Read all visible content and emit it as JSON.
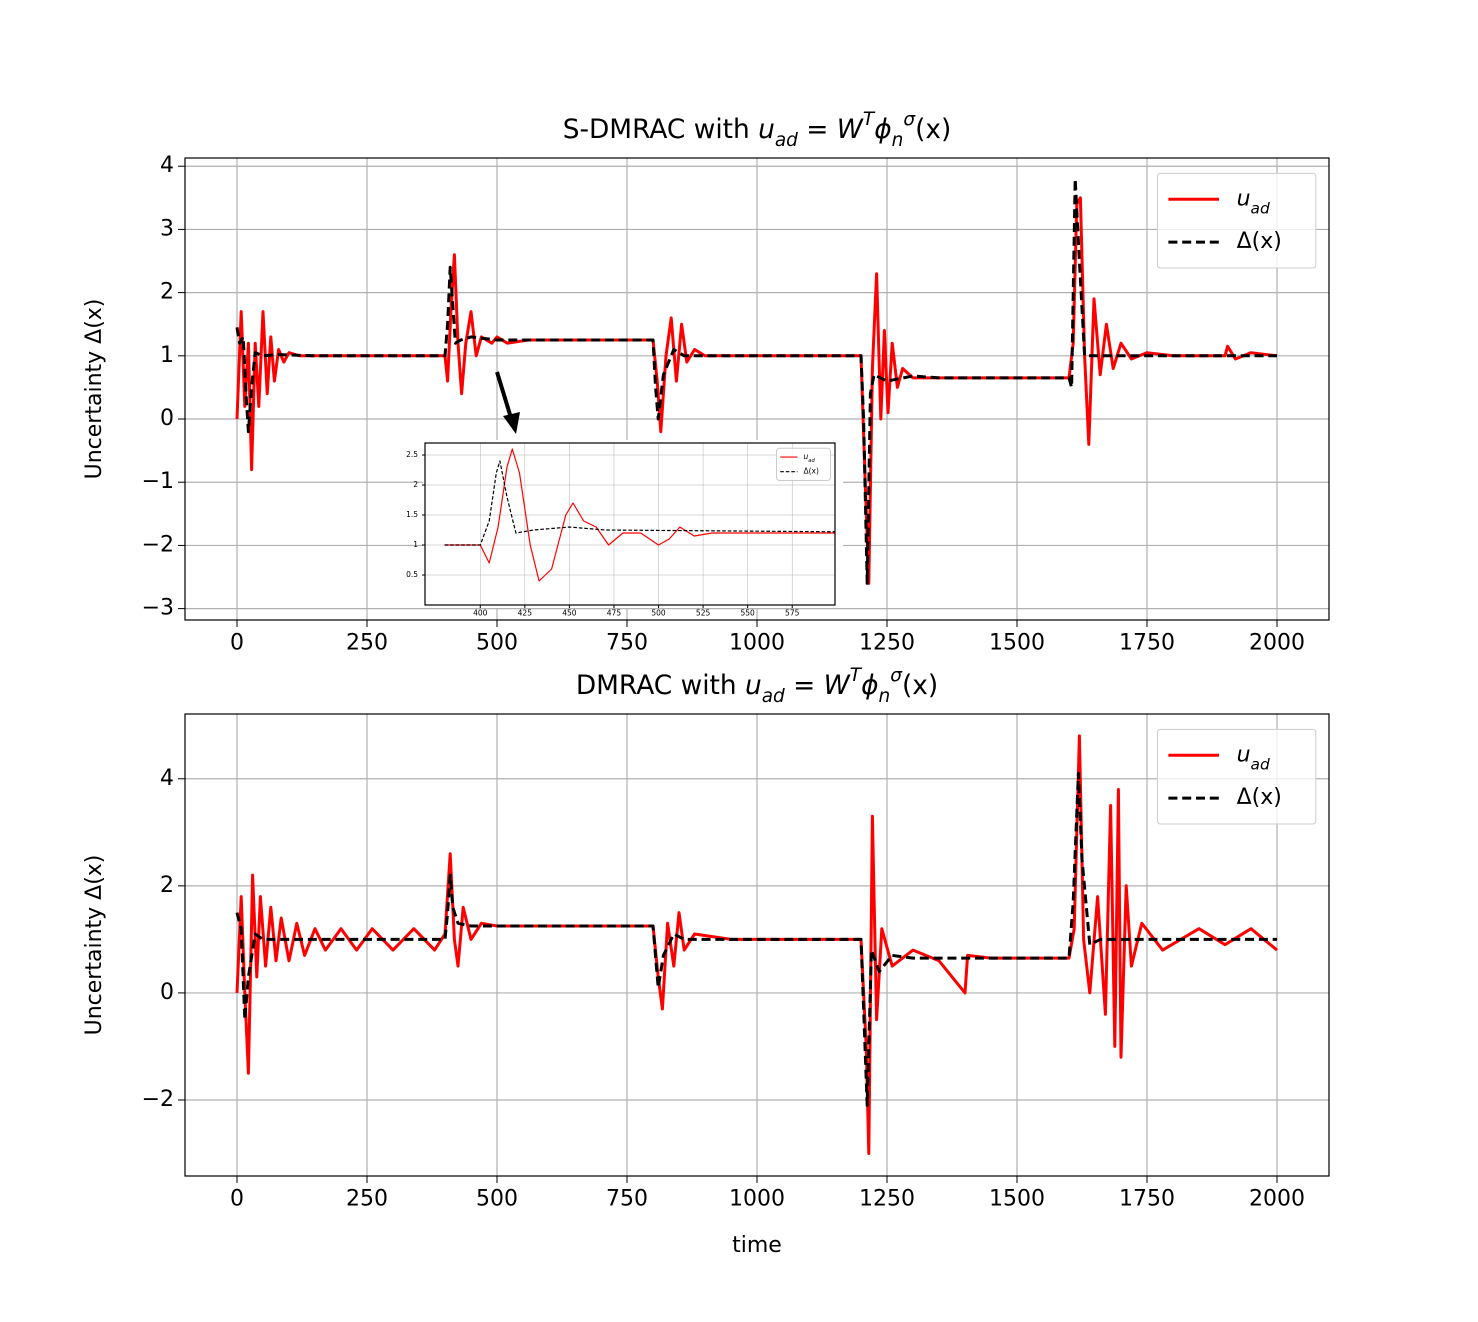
{
  "chart_data": [
    {
      "type": "line",
      "title": [
        {
          "text": "S-DMRAC with "
        },
        {
          "text": "u",
          "italic": true
        },
        {
          "text": "ad",
          "italic": true,
          "sub": true
        },
        {
          "text": " = "
        },
        {
          "text": "W",
          "italic": true
        },
        {
          "text": "T",
          "italic": true,
          "sup": true
        },
        {
          "text": "ϕ",
          "italic": true
        },
        {
          "text": "n",
          "italic": true,
          "sub": true
        },
        {
          "text": "σ",
          "italic": true,
          "sup": true
        },
        {
          "text": "(x)"
        }
      ],
      "ylabel": "Uncertainty Δ(x)",
      "xlim": [
        -100,
        2100
      ],
      "ylim": [
        -3.18,
        4.13
      ],
      "xticks": [
        0,
        250,
        500,
        750,
        1000,
        1250,
        1500,
        1750,
        2000
      ],
      "yticks": [
        {
          "value": -3,
          "label": "−3"
        },
        {
          "value": -2,
          "label": "−2"
        },
        {
          "value": -1,
          "label": "−1"
        },
        0,
        1,
        2,
        3,
        4
      ],
      "grid": true,
      "legend": "upper right",
      "series": [
        {
          "name": [
            {
              "text": "u",
              "italic": true
            },
            {
              "text": "ad",
              "italic": true,
              "sub": true
            }
          ],
          "color": "#ff0000",
          "linestyle": "solid",
          "x": [
            0,
            8,
            15,
            22,
            28,
            35,
            42,
            50,
            58,
            65,
            72,
            80,
            90,
            100,
            120,
            400,
            405,
            412,
            418,
            425,
            432,
            440,
            450,
            460,
            470,
            490,
            500,
            520,
            560,
            800,
            808,
            815,
            825,
            835,
            845,
            855,
            865,
            880,
            900,
            1200,
            1208,
            1215,
            1222,
            1230,
            1238,
            1245,
            1252,
            1260,
            1270,
            1280,
            1300,
            1400,
            1600,
            1608,
            1615,
            1622,
            1630,
            1638,
            1648,
            1660,
            1672,
            1685,
            1700,
            1720,
            1750,
            1800,
            1900,
            1905,
            1920,
            1950,
            2000
          ],
          "values": [
            0,
            1.7,
            0.2,
            1.2,
            -0.8,
            1.2,
            0.2,
            1.7,
            0.4,
            1.3,
            0.6,
            1.1,
            0.9,
            1.05,
            1.0,
            1.0,
            0.6,
            1.8,
            2.6,
            1.2,
            0.4,
            1.2,
            1.7,
            1.0,
            1.3,
            1.2,
            1.3,
            1.2,
            1.25,
            1.25,
            0.6,
            -0.2,
            1.0,
            1.6,
            0.6,
            1.5,
            0.9,
            1.1,
            1.0,
            1.0,
            -1.0,
            -2.6,
            0.8,
            2.3,
            0.0,
            1.4,
            0.1,
            1.2,
            0.5,
            0.8,
            0.65,
            0.65,
            0.65,
            1.2,
            3.4,
            3.5,
            1.0,
            -0.4,
            1.9,
            0.7,
            1.5,
            0.8,
            1.2,
            0.95,
            1.05,
            1.0,
            1.0,
            1.15,
            0.95,
            1.05,
            1.0
          ]
        },
        {
          "name": [
            {
              "text": "Δ(x)"
            }
          ],
          "color": "#000000",
          "linestyle": "dashed",
          "x": [
            0,
            5,
            12,
            18,
            22,
            28,
            35,
            50,
            80,
            150,
            400,
            405,
            410,
            415,
            420,
            430,
            450,
            500,
            800,
            805,
            810,
            820,
            840,
            860,
            1200,
            1205,
            1212,
            1218,
            1225,
            1250,
            1300,
            1350,
            1600,
            1605,
            1612,
            1620,
            1630,
            1650,
            1700,
            2000
          ],
          "values": [
            1.45,
            1.2,
            1.3,
            0.3,
            -0.2,
            0.5,
            1.05,
            1.0,
            1.02,
            1.0,
            1.0,
            1.5,
            2.4,
            1.8,
            1.2,
            1.25,
            1.3,
            1.25,
            1.25,
            0.5,
            0.0,
            0.7,
            1.1,
            1.0,
            1.0,
            0,
            -2.6,
            0.4,
            0.7,
            0.6,
            0.68,
            0.65,
            0.65,
            0.5,
            3.8,
            2.5,
            1.0,
            1.0,
            1.0,
            1.0
          ]
        }
      ]
    },
    {
      "type": "line",
      "xlim": [
        369,
        599
      ],
      "ylim": [
        0.0,
        2.7
      ],
      "xticks": [
        400,
        425,
        450,
        475,
        500,
        525,
        550,
        575
      ],
      "yticks": [
        0.5,
        1.0,
        1.5,
        2.0,
        2.5
      ],
      "grid": true,
      "legend": "upper right",
      "series": [
        {
          "name": [
            {
              "text": "u",
              "italic": true
            },
            {
              "text": "ad",
              "italic": true,
              "sub": true
            }
          ],
          "color": "#ff0000",
          "linestyle": "solid",
          "x": [
            380,
            400,
            405,
            410,
            415,
            418,
            422,
            428,
            433,
            440,
            448,
            452,
            458,
            465,
            472,
            480,
            490,
            500,
            506,
            512,
            520,
            530,
            600
          ],
          "values": [
            1.0,
            1.0,
            0.7,
            1.3,
            2.3,
            2.6,
            2.2,
            1.0,
            0.4,
            0.6,
            1.5,
            1.7,
            1.4,
            1.3,
            1.0,
            1.2,
            1.2,
            1.0,
            1.1,
            1.3,
            1.15,
            1.2,
            1.2
          ]
        },
        {
          "name": [
            {
              "text": "Δ(x)"
            }
          ],
          "color": "#000000",
          "linestyle": "dashed",
          "x": [
            380,
            400,
            405,
            409,
            411,
            415,
            420,
            430,
            450,
            470,
            600
          ],
          "values": [
            1.0,
            1.0,
            1.4,
            2.2,
            2.4,
            1.8,
            1.2,
            1.25,
            1.3,
            1.25,
            1.22
          ]
        }
      ]
    },
    {
      "type": "line",
      "title": [
        {
          "text": "DMRAC with "
        },
        {
          "text": "u",
          "italic": true
        },
        {
          "text": "ad",
          "italic": true,
          "sub": true
        },
        {
          "text": " = "
        },
        {
          "text": "W",
          "italic": true
        },
        {
          "text": "T",
          "italic": true,
          "sup": true
        },
        {
          "text": "ϕ",
          "italic": true
        },
        {
          "text": "n",
          "italic": true,
          "sub": true
        },
        {
          "text": "σ",
          "italic": true,
          "sup": true
        },
        {
          "text": "(x)"
        }
      ],
      "ylabel": "Uncertainty Δ(x)",
      "xlabel": "time",
      "xlim": [
        -100,
        2100
      ],
      "ylim": [
        -3.42,
        5.21
      ],
      "xticks": [
        0,
        250,
        500,
        750,
        1000,
        1250,
        1500,
        1750,
        2000
      ],
      "yticks": [
        {
          "value": -2,
          "label": "−2"
        },
        0,
        2,
        4
      ],
      "grid": true,
      "legend": "upper right",
      "series": [
        {
          "name": [
            {
              "text": "u",
              "italic": true
            },
            {
              "text": "ad",
              "italic": true,
              "sub": true
            }
          ],
          "color": "#ff0000",
          "linestyle": "solid",
          "x": [
            0,
            8,
            15,
            22,
            30,
            38,
            45,
            55,
            65,
            75,
            85,
            100,
            115,
            130,
            150,
            170,
            200,
            230,
            260,
            300,
            340,
            380,
            400,
            410,
            418,
            425,
            435,
            450,
            470,
            500,
            800,
            810,
            818,
            828,
            840,
            850,
            860,
            880,
            950,
            1200,
            1210,
            1215,
            1222,
            1230,
            1240,
            1260,
            1300,
            1350,
            1400,
            1405,
            1450,
            1600,
            1610,
            1620,
            1628,
            1640,
            1655,
            1670,
            1680,
            1688,
            1695,
            1700,
            1710,
            1720,
            1740,
            1780,
            1850,
            1900,
            1950,
            2000
          ],
          "values": [
            0,
            1.8,
            0.0,
            -1.5,
            2.2,
            0.3,
            1.8,
            0.5,
            1.6,
            0.6,
            1.4,
            0.6,
            1.3,
            0.7,
            1.2,
            0.8,
            1.2,
            0.8,
            1.2,
            0.8,
            1.2,
            0.8,
            1.1,
            2.6,
            1.0,
            0.5,
            1.6,
            1.0,
            1.3,
            1.25,
            1.25,
            0.3,
            -0.3,
            1.3,
            0.5,
            1.5,
            0.8,
            1.1,
            1.0,
            1.0,
            -1.0,
            -3.0,
            3.3,
            -0.5,
            1.2,
            0.5,
            0.8,
            0.6,
            0.0,
            0.7,
            0.65,
            0.65,
            1.2,
            4.8,
            1.0,
            0.0,
            1.8,
            -0.4,
            3.5,
            -1.0,
            3.8,
            -1.2,
            2.0,
            0.5,
            1.3,
            0.8,
            1.2,
            0.9,
            1.2,
            0.8
          ]
        },
        {
          "name": [
            {
              "text": "Δ(x)"
            }
          ],
          "color": "#000000",
          "linestyle": "dashed",
          "x": [
            0,
            8,
            15,
            22,
            35,
            50,
            400,
            405,
            410,
            415,
            425,
            450,
            800,
            810,
            820,
            840,
            860,
            1200,
            1212,
            1220,
            1235,
            1260,
            1300,
            1600,
            1608,
            1618,
            1625,
            1640,
            1660,
            2000
          ],
          "values": [
            1.5,
            1.2,
            -0.5,
            0.3,
            1.1,
            1.0,
            1.0,
            1.5,
            2.2,
            1.6,
            1.3,
            1.25,
            1.25,
            0.1,
            0.7,
            1.1,
            1.0,
            1.0,
            -2.1,
            0.8,
            0.4,
            0.7,
            0.65,
            0.65,
            1.7,
            4.1,
            2.5,
            0.9,
            1.0,
            1.0
          ]
        }
      ]
    }
  ]
}
